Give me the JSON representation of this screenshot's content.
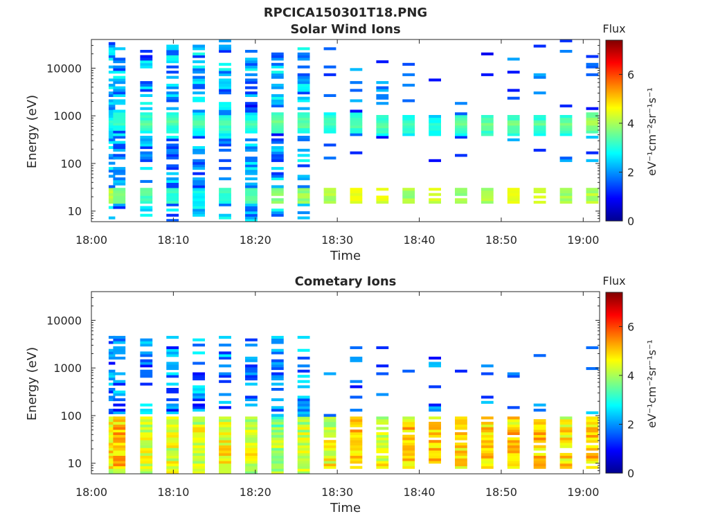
{
  "figure": {
    "suptitle": "RPCICA150301T18.PNG"
  },
  "colormap": {
    "name": "jet",
    "stops": [
      "#00008f",
      "#0000ff",
      "#0080ff",
      "#00ffff",
      "#80ff80",
      "#ffff00",
      "#ff8000",
      "#ff0000",
      "#800000"
    ]
  },
  "chart_data": [
    {
      "type": "heatmap",
      "title": "Solar Wind Ions",
      "xlabel": "Time",
      "ylabel": "Energy (eV)",
      "x_range": [
        "18:00",
        "19:02"
      ],
      "xticks": [
        "18:00",
        "18:10",
        "18:20",
        "18:30",
        "18:40",
        "18:50",
        "19:00"
      ],
      "yscale": "log",
      "ylim": [
        6,
        40000
      ],
      "yticks": [
        "10",
        "100",
        "1000",
        "10000"
      ],
      "colorbar": {
        "title": "Flux",
        "label": "eV⁻¹cm⁻²sr⁻¹s⁻¹",
        "range": [
          0,
          7.4
        ],
        "ticks": [
          "0",
          "2",
          "4",
          "6"
        ]
      },
      "description_values": {
        "scan_times_min": [
          2.5,
          3.4,
          6.7,
          9.9,
          13.1,
          16.3,
          19.5,
          22.7,
          25.9,
          29.1,
          32.3,
          35.5,
          38.7,
          41.9,
          45.1,
          48.3,
          51.5,
          54.7,
          57.9,
          61.1
        ],
        "sw_peak_energy_eV": [
          700,
          800,
          700,
          750,
          700,
          650,
          700,
          700,
          700,
          700,
          700,
          650,
          600,
          600,
          650,
          650,
          650,
          650,
          650,
          700
        ],
        "sw_peak_flux": [
          2.9,
          3.1,
          3.3,
          3.3,
          3.2,
          3.2,
          3.1,
          3.4,
          3.4,
          3.2,
          3.3,
          3.4,
          3.1,
          3.0,
          3.4,
          3.5,
          3.5,
          3.3,
          3.4,
          3.9
        ],
        "alpha_band_eV": [
          15,
          30
        ],
        "alpha_band_flux": [
          4.4,
          4.0,
          3.6,
          3.3,
          3.0,
          3.4,
          3.6,
          4.0,
          4.1,
          4.3,
          4.6,
          4.6,
          4.2,
          4.5,
          4.2,
          4.2,
          4.6,
          4.5,
          4.2,
          4.3
        ]
      }
    },
    {
      "type": "heatmap",
      "title": "Cometary Ions",
      "xlabel": "Time",
      "ylabel": "Energy (eV)",
      "x_range": [
        "18:00",
        "19:02"
      ],
      "xticks": [
        "18:00",
        "18:10",
        "18:20",
        "18:30",
        "18:40",
        "18:50",
        "19:00"
      ],
      "yscale": "log",
      "ylim": [
        6,
        40000
      ],
      "yticks": [
        "10",
        "100",
        "1000",
        "10000"
      ],
      "colorbar": {
        "title": "Flux",
        "label": "eV⁻¹cm⁻²sr⁻¹s⁻¹",
        "range": [
          0,
          7.4
        ],
        "ticks": [
          "0",
          "2",
          "4",
          "6"
        ]
      },
      "description_values": {
        "scan_times_min": [
          2.5,
          3.4,
          6.7,
          9.9,
          13.1,
          16.3,
          19.5,
          22.7,
          25.9,
          29.1,
          32.3,
          35.5,
          38.7,
          41.9,
          45.1,
          48.3,
          51.5,
          54.7,
          57.9,
          61.1
        ],
        "cometary_band_eV": [
          8,
          100
        ],
        "cometary_peak_flux": [
          5.4,
          5.7,
          5.0,
          5.0,
          5.0,
          5.2,
          5.0,
          4.6,
          4.8,
          5.2,
          5.6,
          5.1,
          5.6,
          5.6,
          5.5,
          5.6,
          5.7,
          5.6,
          5.4,
          5.6
        ]
      }
    }
  ]
}
